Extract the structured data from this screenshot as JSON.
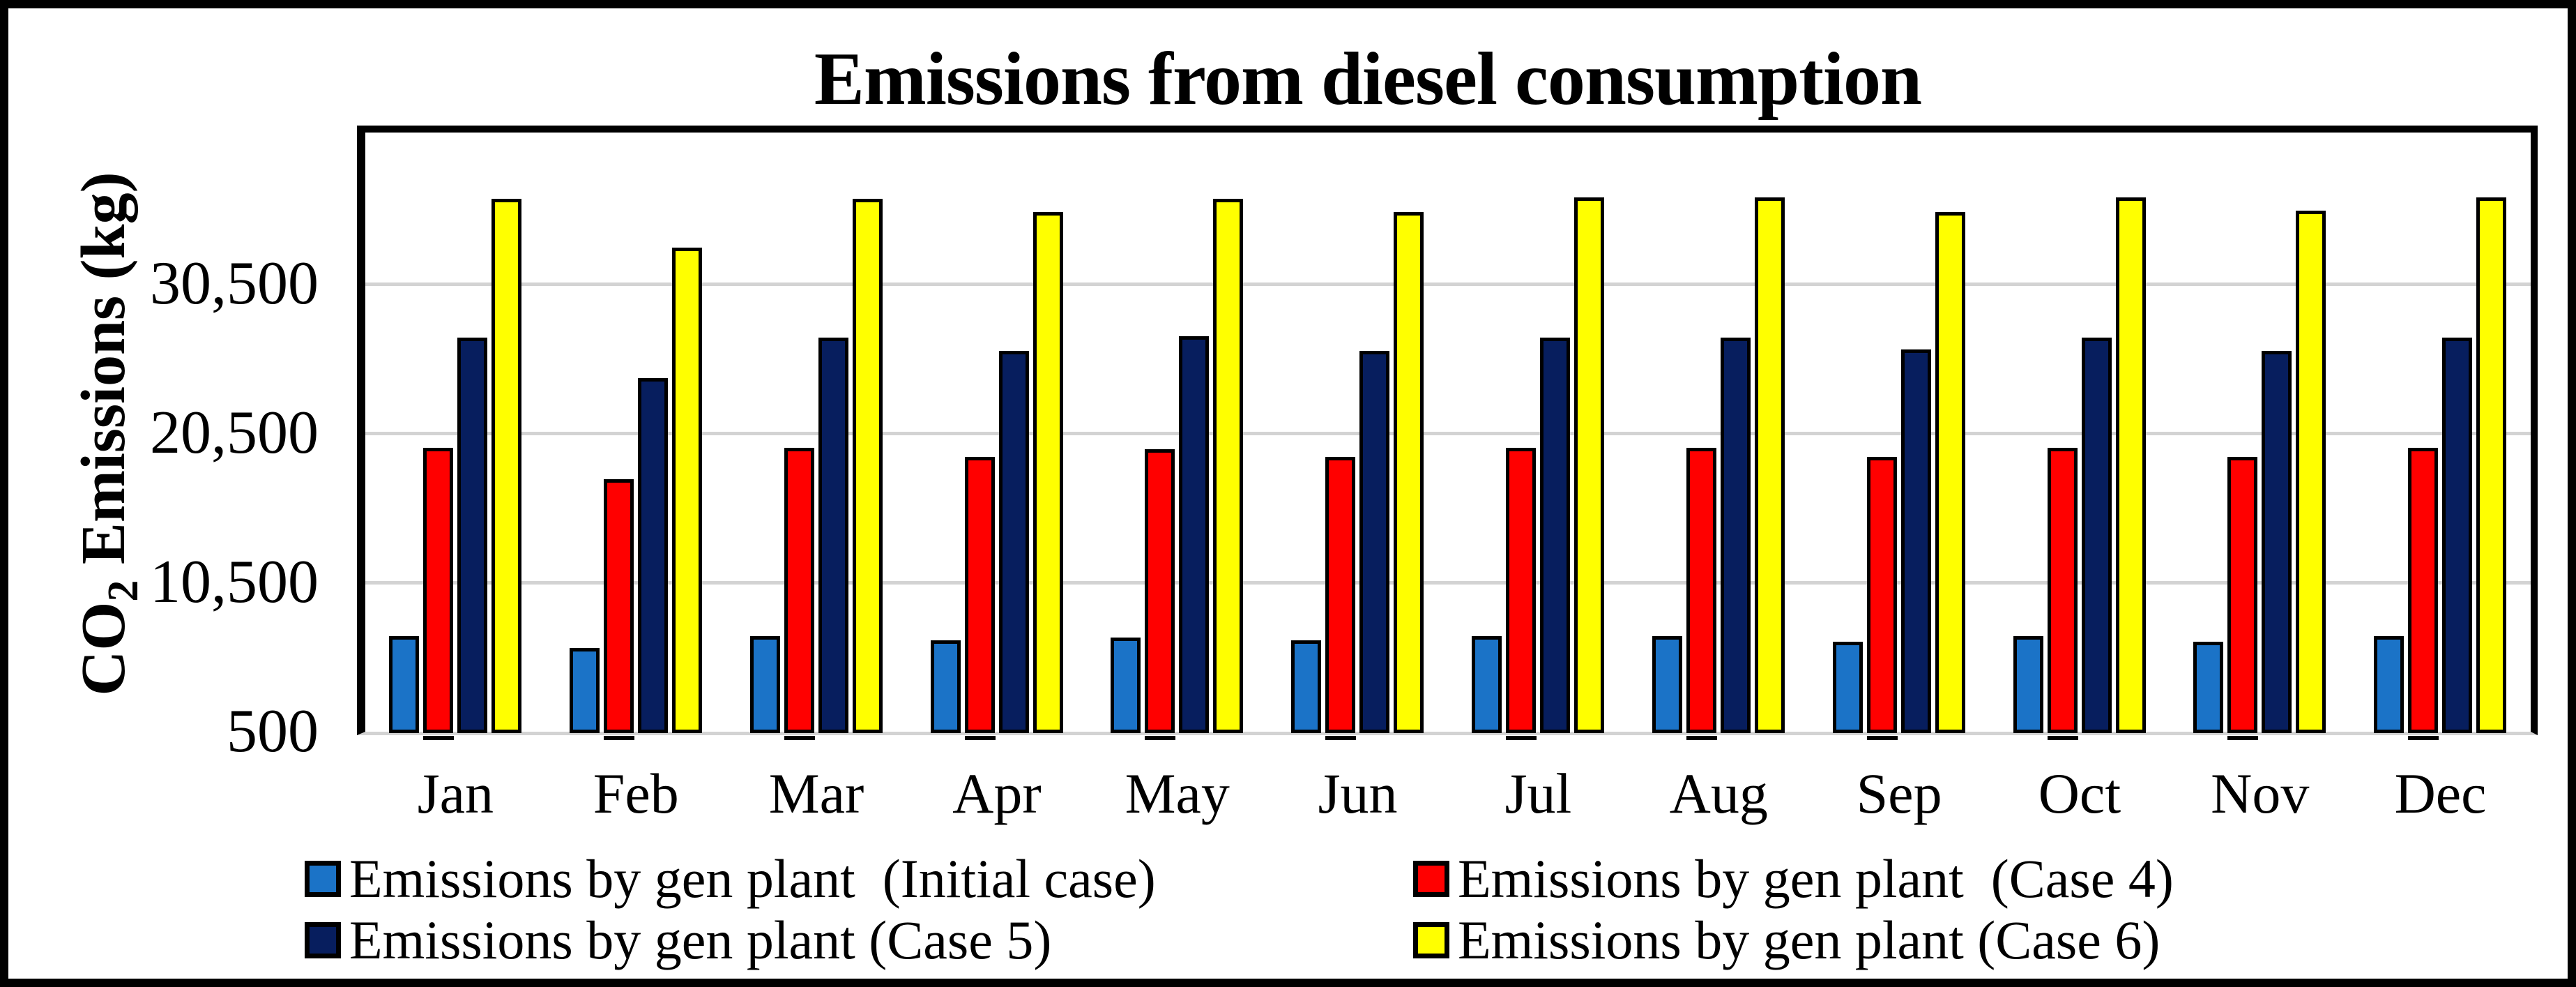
{
  "figure": {
    "background": "#FFFFFF",
    "border_color": "#000000"
  },
  "chart_data": {
    "type": "bar",
    "title": "Emissions from diesel consumption",
    "ylabel": {
      "pre": "CO",
      "sub": "2",
      "post": " Emissions (kg)"
    },
    "xlabel": "",
    "categories": [
      "Jan",
      "Feb",
      "Mar",
      "Apr",
      "May",
      "Jun",
      "Jul",
      "Aug",
      "Sep",
      "Oct",
      "Nov",
      "Dec"
    ],
    "series": [
      {
        "name": "Emissions by gen plant  (Initial case)",
        "color": "#1B73C7",
        "values": [
          7000,
          6200,
          7000,
          6700,
          6900,
          6700,
          7000,
          7000,
          6600,
          7000,
          6600,
          7000
        ]
      },
      {
        "name": "Emissions by gen plant  (Case 4)",
        "color": "#FF0000",
        "values": [
          19600,
          17500,
          19600,
          19000,
          19500,
          19000,
          19600,
          19600,
          19000,
          19600,
          19000,
          19600
        ]
      },
      {
        "name": "Emissions by gen plant (Case 5)",
        "color": "#071E5E",
        "values": [
          27000,
          24300,
          27000,
          26100,
          27100,
          26100,
          27000,
          27000,
          26200,
          27000,
          26100,
          27000
        ]
      },
      {
        "name": "Emissions by gen plant (Case 6)",
        "color": "#FFFF00",
        "values": [
          36300,
          33000,
          36300,
          35400,
          36300,
          35400,
          36400,
          36400,
          35400,
          36400,
          35500,
          36400
        ]
      }
    ],
    "y_axis": {
      "min": 500,
      "max": 40500,
      "tick_labels": [
        "500",
        "10,500",
        "20,500",
        "30,500"
      ],
      "tick_values": [
        500,
        10500,
        20500,
        30500
      ],
      "gridline_color": "#D3D3D3"
    },
    "grid": true,
    "legend_position": "bottom",
    "bar_outline_color": "#000000"
  }
}
